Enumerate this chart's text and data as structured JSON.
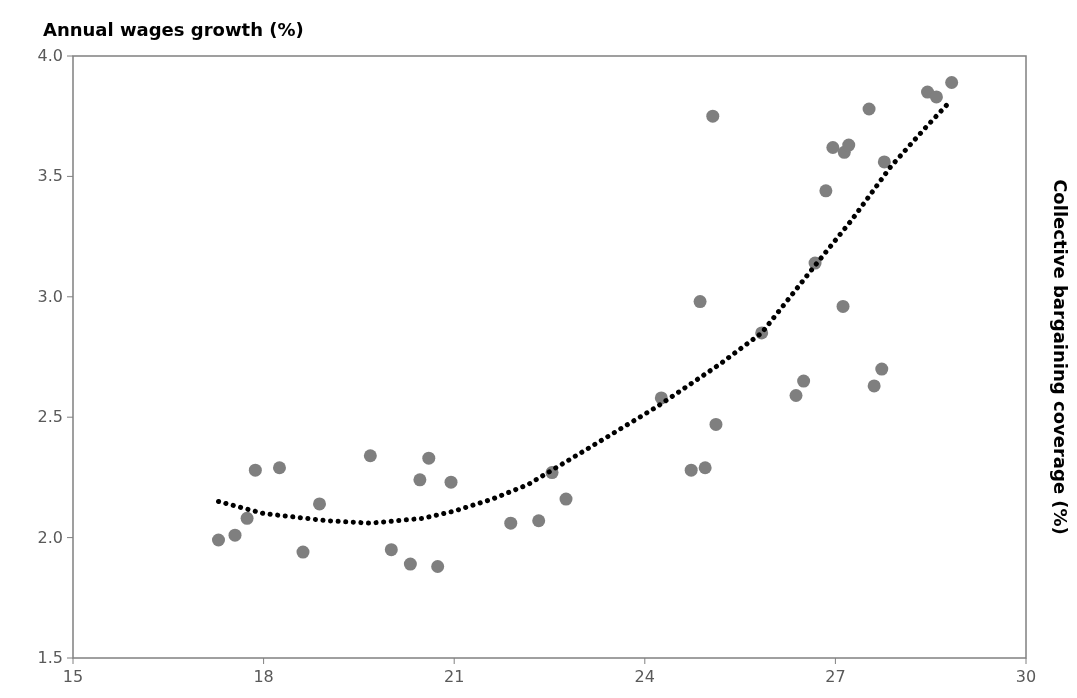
{
  "chart_data": {
    "type": "scatter",
    "ylabel": "Annual wages growth (%)",
    "y2label": "Collective bargaining coverage (%)",
    "xlim": [
      15,
      30
    ],
    "xticks": [
      15,
      18,
      21,
      24,
      27,
      30
    ],
    "ylim": [
      1.5,
      4.0
    ],
    "yticks": [
      {
        "value": 1.5,
        "label": "1.5"
      },
      {
        "value": 2.0,
        "label": "2.0"
      },
      {
        "value": 2.5,
        "label": "2.5"
      },
      {
        "value": 3.0,
        "label": "3.0"
      },
      {
        "value": 3.5,
        "label": "3.5"
      },
      {
        "value": 4.0,
        "label": "4.0"
      }
    ],
    "grid": false,
    "marker": "circle",
    "series": [
      {
        "color": "#7f7f7f",
        "x": [
          17.29,
          17.55,
          17.74,
          17.87,
          18.25,
          18.62,
          18.88,
          19.68,
          20.01,
          20.31,
          20.46,
          20.6,
          20.74,
          20.95,
          21.89,
          22.33,
          22.54,
          22.76,
          24.26,
          24.73,
          24.95,
          25.12,
          24.87,
          25.07,
          25.84,
          26.38,
          26.5,
          26.68,
          26.85,
          26.96,
          27.14,
          27.21,
          27.12,
          27.53,
          27.77,
          27.61,
          27.73,
          28.45,
          28.59,
          28.83
        ],
        "values": [
          1.99,
          2.01,
          2.08,
          2.28,
          2.29,
          1.94,
          2.14,
          2.34,
          1.95,
          1.89,
          2.24,
          2.33,
          1.88,
          2.23,
          2.06,
          2.07,
          2.27,
          2.16,
          2.58,
          2.28,
          2.29,
          2.47,
          2.98,
          3.75,
          2.85,
          2.59,
          2.65,
          3.14,
          3.44,
          3.62,
          3.6,
          3.63,
          2.96,
          3.78,
          3.56,
          2.63,
          2.7,
          3.85,
          3.83,
          3.89
        ]
      },
      {
        "type": "line",
        "color": "#000000",
        "line_style": "dotted",
        "marker": "none",
        "x": [
          17.29,
          18.0,
          19.0,
          19.68,
          20.5,
          21.0,
          21.6,
          22.16,
          23.17,
          24.17,
          25.18,
          25.84,
          26.68,
          27.26,
          27.87,
          28.41,
          28.8
        ],
        "values": [
          2.15,
          2.1,
          2.07,
          2.06,
          2.08,
          2.11,
          2.16,
          2.22,
          2.38,
          2.54,
          2.72,
          2.85,
          3.13,
          3.32,
          3.54,
          3.7,
          3.81
        ]
      }
    ]
  }
}
